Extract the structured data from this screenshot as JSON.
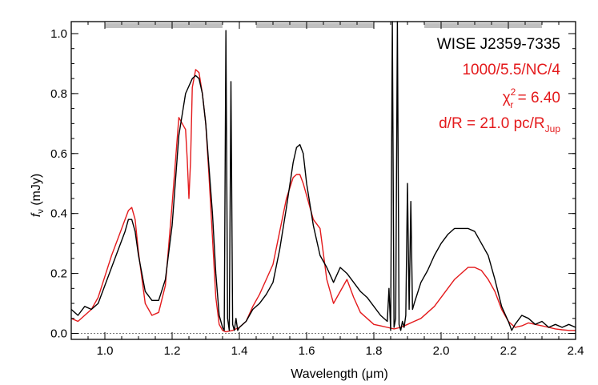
{
  "chart_data": {
    "type": "line",
    "xlabel": "Wavelength (μm)",
    "ylabel_main": "f",
    "ylabel_sub": "ν",
    "ylabel_unit": " (mJy)",
    "xlim": [
      0.9,
      2.4
    ],
    "ylim": [
      -0.02,
      1.04
    ],
    "xticks": [
      1.0,
      1.2,
      1.4,
      1.6,
      1.8,
      2.0,
      2.2,
      2.4
    ],
    "xtick_labels": [
      "1.0",
      "1.2",
      "1.4",
      "1.6",
      "1.8",
      "2.0",
      "2.2",
      "2.4"
    ],
    "yticks": [
      0.0,
      0.2,
      0.4,
      0.6,
      0.8,
      1.0
    ],
    "ytick_labels": [
      "0.0",
      "0.2",
      "0.4",
      "0.6",
      "0.8",
      "1.0"
    ],
    "annotations": {
      "object": "WISE J2359-7335",
      "model": "1000/5.5/NC/4",
      "chi_pre": "χ",
      "chi_sup": "2",
      "chi_sub": "r",
      "chi_post": " = 6.40",
      "dist_pre": "d/R = 21.0 pc/R",
      "dist_sub": "Jup"
    },
    "telluric_bands": [
      [
        1.0,
        1.35
      ],
      [
        1.45,
        1.8
      ],
      [
        1.95,
        2.3
      ]
    ],
    "colors": {
      "observed": "#000000",
      "model": "#e41a1c",
      "band": "#c0c0c0",
      "zero": "#777777"
    },
    "series": [
      {
        "key": "observed",
        "x": [
          0.9,
          0.92,
          0.94,
          0.96,
          0.98,
          1.0,
          1.02,
          1.04,
          1.06,
          1.07,
          1.08,
          1.09,
          1.1,
          1.12,
          1.14,
          1.16,
          1.18,
          1.2,
          1.22,
          1.24,
          1.26,
          1.27,
          1.28,
          1.29,
          1.3,
          1.31,
          1.32,
          1.33,
          1.34,
          1.35,
          1.355,
          1.36,
          1.365,
          1.37,
          1.375,
          1.38,
          1.385,
          1.39,
          1.395,
          1.4,
          1.42,
          1.44,
          1.46,
          1.48,
          1.5,
          1.52,
          1.54,
          1.56,
          1.57,
          1.58,
          1.59,
          1.6,
          1.62,
          1.64,
          1.66,
          1.68,
          1.7,
          1.72,
          1.74,
          1.76,
          1.78,
          1.8,
          1.82,
          1.84,
          1.845,
          1.85,
          1.855,
          1.86,
          1.865,
          1.87,
          1.875,
          1.88,
          1.885,
          1.89,
          1.895,
          1.9,
          1.905,
          1.91,
          1.915,
          1.92,
          1.94,
          1.96,
          1.98,
          2.0,
          2.02,
          2.04,
          2.06,
          2.08,
          2.1,
          2.12,
          2.14,
          2.16,
          2.18,
          2.2,
          2.21,
          2.22,
          2.24,
          2.26,
          2.28,
          2.3,
          2.32,
          2.34,
          2.36,
          2.38,
          2.4
        ],
        "y": [
          0.08,
          0.06,
          0.09,
          0.08,
          0.1,
          0.16,
          0.22,
          0.28,
          0.34,
          0.38,
          0.38,
          0.34,
          0.26,
          0.14,
          0.11,
          0.11,
          0.18,
          0.36,
          0.66,
          0.8,
          0.85,
          0.86,
          0.85,
          0.8,
          0.7,
          0.55,
          0.4,
          0.2,
          0.06,
          0.02,
          0.01,
          1.01,
          0.05,
          0.01,
          0.84,
          0.03,
          0.01,
          0.05,
          0.01,
          0.02,
          0.04,
          0.08,
          0.1,
          0.13,
          0.17,
          0.28,
          0.42,
          0.57,
          0.62,
          0.63,
          0.6,
          0.5,
          0.36,
          0.26,
          0.22,
          0.17,
          0.22,
          0.2,
          0.17,
          0.14,
          0.12,
          0.09,
          0.06,
          0.04,
          0.15,
          0.01,
          1.04,
          0.02,
          0.05,
          1.04,
          0.03,
          0.01,
          0.04,
          0.02,
          0.06,
          0.5,
          0.08,
          0.44,
          0.08,
          0.1,
          0.17,
          0.21,
          0.26,
          0.3,
          0.33,
          0.35,
          0.35,
          0.35,
          0.34,
          0.3,
          0.26,
          0.18,
          0.09,
          0.04,
          0.01,
          0.03,
          0.06,
          0.05,
          0.03,
          0.04,
          0.02,
          0.03,
          0.02,
          0.03,
          0.02
        ]
      },
      {
        "key": "model",
        "x": [
          0.9,
          0.92,
          0.94,
          0.96,
          0.98,
          1.0,
          1.02,
          1.04,
          1.06,
          1.07,
          1.08,
          1.09,
          1.1,
          1.12,
          1.14,
          1.16,
          1.18,
          1.2,
          1.22,
          1.24,
          1.245,
          1.25,
          1.255,
          1.26,
          1.27,
          1.28,
          1.29,
          1.3,
          1.31,
          1.32,
          1.33,
          1.34,
          1.35,
          1.36,
          1.38,
          1.4,
          1.42,
          1.44,
          1.46,
          1.48,
          1.5,
          1.52,
          1.54,
          1.56,
          1.57,
          1.58,
          1.59,
          1.6,
          1.62,
          1.64,
          1.66,
          1.68,
          1.7,
          1.72,
          1.74,
          1.76,
          1.78,
          1.8,
          1.82,
          1.84,
          1.86,
          1.88,
          1.9,
          1.92,
          1.94,
          1.96,
          1.98,
          2.0,
          2.02,
          2.04,
          2.06,
          2.08,
          2.1,
          2.12,
          2.14,
          2.16,
          2.18,
          2.2,
          2.22,
          2.24,
          2.26,
          2.28,
          2.3,
          2.32,
          2.34,
          2.36,
          2.38,
          2.4
        ],
        "y": [
          0.05,
          0.04,
          0.06,
          0.08,
          0.12,
          0.19,
          0.26,
          0.32,
          0.38,
          0.41,
          0.42,
          0.38,
          0.27,
          0.1,
          0.06,
          0.07,
          0.16,
          0.43,
          0.72,
          0.68,
          0.58,
          0.45,
          0.58,
          0.82,
          0.88,
          0.87,
          0.8,
          0.7,
          0.52,
          0.32,
          0.12,
          0.03,
          0.01,
          0.005,
          0.01,
          0.02,
          0.04,
          0.09,
          0.13,
          0.18,
          0.23,
          0.34,
          0.45,
          0.52,
          0.53,
          0.53,
          0.5,
          0.46,
          0.38,
          0.35,
          0.18,
          0.1,
          0.14,
          0.18,
          0.12,
          0.07,
          0.05,
          0.03,
          0.025,
          0.02,
          0.015,
          0.02,
          0.03,
          0.04,
          0.05,
          0.07,
          0.09,
          0.12,
          0.15,
          0.18,
          0.2,
          0.22,
          0.22,
          0.21,
          0.18,
          0.14,
          0.08,
          0.04,
          0.02,
          0.025,
          0.035,
          0.03,
          0.025,
          0.02,
          0.015,
          0.012,
          0.01,
          0.01
        ]
      }
    ]
  }
}
